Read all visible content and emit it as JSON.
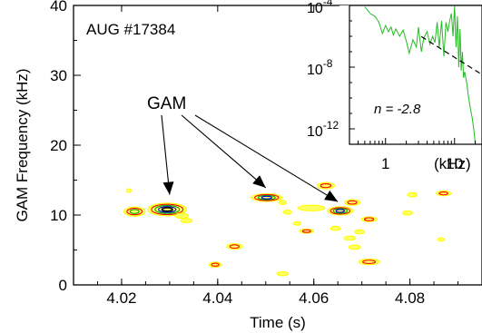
{
  "chart_data": [
    {
      "type": "heatmap",
      "title": "",
      "annotation_shot": "AUG #17384",
      "annotation_label": "GAM",
      "xlabel": "Time (s)",
      "ylabel": "GAM Frequency (kHz)",
      "xlim": [
        4.01,
        4.095
      ],
      "ylim": [
        0,
        40
      ],
      "xticks": [
        4.02,
        4.04,
        4.06,
        4.08
      ],
      "xtick_labels": [
        "4.02",
        "4.04",
        "4.06",
        "4.08"
      ],
      "yticks": [
        0,
        10,
        20,
        30,
        40
      ],
      "ytick_labels": [
        "0",
        "10",
        "20",
        "30",
        "40"
      ],
      "contour_colors": [
        "#ffff00",
        "#ff0000",
        "#00aa00",
        "#0000cc",
        "#000000"
      ],
      "blobs": [
        {
          "t": 4.0227,
          "f": 10.5,
          "wt": 0.0022,
          "wf": 0.65,
          "level": 3
        },
        {
          "t": 4.0295,
          "f": 10.8,
          "wt": 0.004,
          "wf": 0.9,
          "level": 5
        },
        {
          "t": 4.0325,
          "f": 9.9,
          "wt": 0.0014,
          "wf": 0.35,
          "level": 1
        },
        {
          "t": 4.0335,
          "f": 9.2,
          "wt": 0.0012,
          "wf": 0.3,
          "level": 1
        },
        {
          "t": 4.0215,
          "f": 13.5,
          "wt": 0.0005,
          "wf": 0.25,
          "level": 1
        },
        {
          "t": 4.0435,
          "f": 5.5,
          "wt": 0.0016,
          "wf": 0.4,
          "level": 2
        },
        {
          "t": 4.0395,
          "f": 2.9,
          "wt": 0.0013,
          "wf": 0.35,
          "level": 2
        },
        {
          "t": 4.0502,
          "f": 12.5,
          "wt": 0.0032,
          "wf": 0.55,
          "level": 4
        },
        {
          "t": 4.0535,
          "f": 11.8,
          "wt": 0.0008,
          "wf": 0.3,
          "level": 1
        },
        {
          "t": 4.0545,
          "f": 10.4,
          "wt": 0.0008,
          "wf": 0.3,
          "level": 1
        },
        {
          "t": 4.0535,
          "f": 1.6,
          "wt": 0.0012,
          "wf": 0.28,
          "level": 1
        },
        {
          "t": 4.0625,
          "f": 14.2,
          "wt": 0.0018,
          "wf": 0.45,
          "level": 2
        },
        {
          "t": 4.0595,
          "f": 11.0,
          "wt": 0.0028,
          "wf": 0.4,
          "level": 1
        },
        {
          "t": 4.0585,
          "f": 7.7,
          "wt": 0.0014,
          "wf": 0.3,
          "level": 2
        },
        {
          "t": 4.0565,
          "f": 8.8,
          "wt": 0.0008,
          "wf": 0.25,
          "level": 1
        },
        {
          "t": 4.0655,
          "f": 10.6,
          "wt": 0.0026,
          "wf": 0.6,
          "level": 4
        },
        {
          "t": 4.068,
          "f": 11.8,
          "wt": 0.0016,
          "wf": 0.4,
          "level": 2
        },
        {
          "t": 4.0645,
          "f": 8.1,
          "wt": 0.001,
          "wf": 0.3,
          "level": 1
        },
        {
          "t": 4.0695,
          "f": 7.6,
          "wt": 0.001,
          "wf": 0.3,
          "level": 1
        },
        {
          "t": 4.0675,
          "f": 6.7,
          "wt": 0.0012,
          "wf": 0.3,
          "level": 1
        },
        {
          "t": 4.0715,
          "f": 9.4,
          "wt": 0.0016,
          "wf": 0.35,
          "level": 2
        },
        {
          "t": 4.0685,
          "f": 5.4,
          "wt": 0.0012,
          "wf": 0.3,
          "level": 1
        },
        {
          "t": 4.0715,
          "f": 3.3,
          "wt": 0.0022,
          "wf": 0.4,
          "level": 2
        },
        {
          "t": 4.0795,
          "f": 10.3,
          "wt": 0.001,
          "wf": 0.3,
          "level": 1
        },
        {
          "t": 4.0805,
          "f": 12.9,
          "wt": 0.001,
          "wf": 0.3,
          "level": 1
        },
        {
          "t": 4.087,
          "f": 13.1,
          "wt": 0.0015,
          "wf": 0.35,
          "level": 2
        },
        {
          "t": 4.0865,
          "f": 6.5,
          "wt": 0.0007,
          "wf": 0.25,
          "level": 1
        }
      ],
      "arrow_targets": [
        {
          "t": 4.03,
          "f": 12.0
        },
        {
          "t": 4.05,
          "f": 13.0
        },
        {
          "t": 4.065,
          "f": 11.0
        }
      ]
    },
    {
      "type": "line",
      "scale": "log-log",
      "xlabel": "(kHz)",
      "xlim": [
        0.3,
        25
      ],
      "ylim": [
        1e-13,
        0.0001
      ],
      "xtick_labels": [
        "1",
        "10"
      ],
      "ytick_labels": [
        "10-4",
        "10-8",
        "10-12"
      ],
      "fit_label": "n = -2.8",
      "fit_exponent": -2.8,
      "series_color": "#22bb22",
      "fit_color": "#000000",
      "x": [
        0.5,
        0.6,
        0.7,
        0.8,
        0.9,
        1.0,
        1.1,
        1.2,
        1.3,
        1.4,
        1.6,
        1.8,
        2.0,
        2.2,
        2.5,
        2.8,
        3.0,
        3.3,
        3.6,
        4.0,
        4.4,
        4.8,
        5.2,
        5.6,
        6.0,
        6.5,
        7.0,
        7.5,
        8.0,
        8.5,
        9.0,
        9.5,
        10.0,
        10.5,
        11.0,
        11.5,
        12.0,
        12.5,
        13.0,
        13.5,
        14.0,
        15.0,
        16.0,
        17.0,
        18.0,
        19.0,
        20.0
      ],
      "y": [
        8e-05,
        3e-05,
        2e-05,
        8e-06,
        1.5e-06,
        5e-06,
        2e-06,
        4e-06,
        1.2e-06,
        3e-06,
        1e-06,
        2.5e-06,
        5e-07,
        8e-08,
        6e-07,
        2e-07,
        4e-06,
        1e-07,
        8e-07,
        2e-06,
        3e-07,
        1e-06,
        4e-07,
        8e-06,
        2e-07,
        1e-05,
        5e-08,
        8e-06,
        2e-06,
        1e-05,
        3e-05,
        1e-06,
        9e-05,
        2e-07,
        2e-05,
        1e-08,
        3e-06,
        6e-09,
        1e-07,
        2e-09,
        5e-09,
        1e-09,
        1e-10,
        2e-11,
        5e-12,
        1e-12,
        1e-13
      ]
    }
  ]
}
